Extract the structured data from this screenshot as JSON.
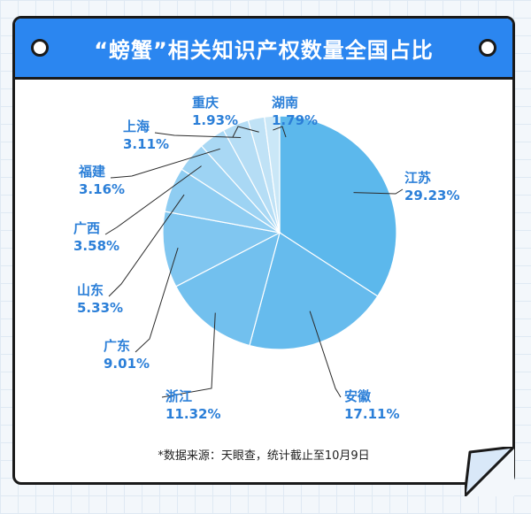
{
  "title": "“螃蟹”相关知识产权数量全国占比",
  "source_note": "*数据来源：天眼查，统计截止至10月9日",
  "colors": {
    "header": "#2b86f0",
    "label": "#2b7fd8",
    "slices": [
      "#5cb8ec",
      "#66bbed",
      "#72c0ee",
      "#80c6f0",
      "#8fcdf2",
      "#9dd3f3",
      "#a9d8f4",
      "#b5ddf5",
      "#c0e2f6",
      "#cae7f7"
    ]
  },
  "chart_data": {
    "type": "pie",
    "title": "“螃蟹”相关知识产权数量全国占比",
    "unit": "%",
    "slices": [
      {
        "label": "江苏",
        "value": 29.23,
        "display": "29.23%"
      },
      {
        "label": "安徽",
        "value": 17.11,
        "display": "17.11%"
      },
      {
        "label": "浙江",
        "value": 11.32,
        "display": "11.32%"
      },
      {
        "label": "广东",
        "value": 9.01,
        "display": "9.01%"
      },
      {
        "label": "山东",
        "value": 5.33,
        "display": "5.33%"
      },
      {
        "label": "广西",
        "value": 3.58,
        "display": "3.58%"
      },
      {
        "label": "福建",
        "value": 3.16,
        "display": "3.16%"
      },
      {
        "label": "上海",
        "value": 3.11,
        "display": "3.11%"
      },
      {
        "label": "重庆",
        "value": 1.93,
        "display": "1.93%"
      },
      {
        "label": "湖南",
        "value": 1.79,
        "display": "1.79%"
      }
    ]
  }
}
